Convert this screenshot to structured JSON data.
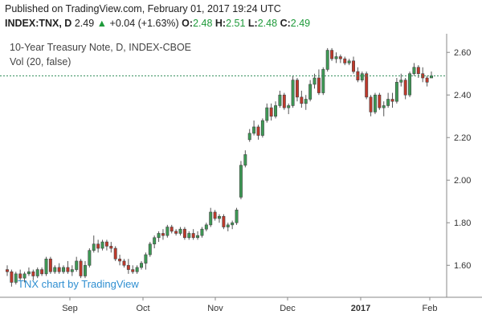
{
  "header": {
    "published": "Published on TradingView.com, February 01, 2017 19:24 UTC",
    "symbol": "INDEX:TNX, D",
    "last": "2.49",
    "change": "+0.04 (+1.63%)",
    "o_label": "O:",
    "o_value": "2.48",
    "h_label": "H:",
    "h_value": "2.51",
    "l_label": "L:",
    "l_value": "2.48",
    "c_label": "C:",
    "c_value": "2.49"
  },
  "overlay": {
    "title": "10-Year Treasury Note, D, INDEX-CBOE",
    "volume": "Vol (20, false)"
  },
  "watermark": "TNX chart by TradingView",
  "colors": {
    "up": "#3d9a55",
    "down": "#c0392b",
    "current_line": "#2e8b57",
    "axis": "#888888"
  },
  "chart_data": {
    "type": "candlestick",
    "y_ticks": [
      "2.60",
      "2.40",
      "2.20",
      "2.00",
      "1.80",
      "1.60"
    ],
    "ylim": [
      1.45,
      2.68
    ],
    "x_ticks": [
      "Sep",
      "Oct",
      "Nov",
      "Dec",
      "2017",
      "Feb"
    ],
    "current_price": 2.49,
    "candles": [
      {
        "o": 1.58,
        "h": 1.6,
        "l": 1.55,
        "c": 1.57
      },
      {
        "o": 1.57,
        "h": 1.58,
        "l": 1.5,
        "c": 1.52
      },
      {
        "o": 1.52,
        "h": 1.57,
        "l": 1.51,
        "c": 1.56
      },
      {
        "o": 1.56,
        "h": 1.58,
        "l": 1.53,
        "c": 1.54
      },
      {
        "o": 1.54,
        "h": 1.57,
        "l": 1.52,
        "c": 1.56
      },
      {
        "o": 1.56,
        "h": 1.59,
        "l": 1.55,
        "c": 1.57
      },
      {
        "o": 1.57,
        "h": 1.58,
        "l": 1.53,
        "c": 1.55
      },
      {
        "o": 1.55,
        "h": 1.59,
        "l": 1.54,
        "c": 1.58
      },
      {
        "o": 1.58,
        "h": 1.59,
        "l": 1.55,
        "c": 1.56
      },
      {
        "o": 1.56,
        "h": 1.64,
        "l": 1.55,
        "c": 1.63
      },
      {
        "o": 1.63,
        "h": 1.64,
        "l": 1.56,
        "c": 1.57
      },
      {
        "o": 1.57,
        "h": 1.6,
        "l": 1.56,
        "c": 1.59
      },
      {
        "o": 1.59,
        "h": 1.61,
        "l": 1.56,
        "c": 1.57
      },
      {
        "o": 1.57,
        "h": 1.6,
        "l": 1.56,
        "c": 1.59
      },
      {
        "o": 1.59,
        "h": 1.62,
        "l": 1.56,
        "c": 1.57
      },
      {
        "o": 1.57,
        "h": 1.6,
        "l": 1.55,
        "c": 1.58
      },
      {
        "o": 1.58,
        "h": 1.64,
        "l": 1.57,
        "c": 1.62
      },
      {
        "o": 1.62,
        "h": 1.63,
        "l": 1.54,
        "c": 1.55
      },
      {
        "o": 1.55,
        "h": 1.62,
        "l": 1.54,
        "c": 1.6
      },
      {
        "o": 1.6,
        "h": 1.68,
        "l": 1.59,
        "c": 1.67
      },
      {
        "o": 1.67,
        "h": 1.74,
        "l": 1.66,
        "c": 1.7
      },
      {
        "o": 1.7,
        "h": 1.72,
        "l": 1.66,
        "c": 1.68
      },
      {
        "o": 1.68,
        "h": 1.72,
        "l": 1.67,
        "c": 1.71
      },
      {
        "o": 1.71,
        "h": 1.72,
        "l": 1.67,
        "c": 1.69
      },
      {
        "o": 1.69,
        "h": 1.71,
        "l": 1.66,
        "c": 1.68
      },
      {
        "o": 1.68,
        "h": 1.69,
        "l": 1.62,
        "c": 1.63
      },
      {
        "o": 1.63,
        "h": 1.65,
        "l": 1.6,
        "c": 1.62
      },
      {
        "o": 1.62,
        "h": 1.63,
        "l": 1.59,
        "c": 1.6
      },
      {
        "o": 1.6,
        "h": 1.63,
        "l": 1.56,
        "c": 1.58
      },
      {
        "o": 1.58,
        "h": 1.6,
        "l": 1.56,
        "c": 1.57
      },
      {
        "o": 1.57,
        "h": 1.6,
        "l": 1.56,
        "c": 1.59
      },
      {
        "o": 1.59,
        "h": 1.62,
        "l": 1.58,
        "c": 1.61
      },
      {
        "o": 1.61,
        "h": 1.66,
        "l": 1.58,
        "c": 1.65
      },
      {
        "o": 1.65,
        "h": 1.71,
        "l": 1.64,
        "c": 1.7
      },
      {
        "o": 1.7,
        "h": 1.74,
        "l": 1.68,
        "c": 1.73
      },
      {
        "o": 1.73,
        "h": 1.76,
        "l": 1.71,
        "c": 1.75
      },
      {
        "o": 1.75,
        "h": 1.77,
        "l": 1.72,
        "c": 1.74
      },
      {
        "o": 1.74,
        "h": 1.79,
        "l": 1.73,
        "c": 1.78
      },
      {
        "o": 1.78,
        "h": 1.79,
        "l": 1.75,
        "c": 1.76
      },
      {
        "o": 1.76,
        "h": 1.77,
        "l": 1.74,
        "c": 1.75
      },
      {
        "o": 1.75,
        "h": 1.78,
        "l": 1.74,
        "c": 1.77
      },
      {
        "o": 1.77,
        "h": 1.78,
        "l": 1.72,
        "c": 1.73
      },
      {
        "o": 1.73,
        "h": 1.76,
        "l": 1.72,
        "c": 1.75
      },
      {
        "o": 1.75,
        "h": 1.77,
        "l": 1.72,
        "c": 1.73
      },
      {
        "o": 1.73,
        "h": 1.76,
        "l": 1.72,
        "c": 1.74
      },
      {
        "o": 1.74,
        "h": 1.78,
        "l": 1.73,
        "c": 1.77
      },
      {
        "o": 1.77,
        "h": 1.8,
        "l": 1.76,
        "c": 1.79
      },
      {
        "o": 1.79,
        "h": 1.87,
        "l": 1.78,
        "c": 1.85
      },
      {
        "o": 1.85,
        "h": 1.86,
        "l": 1.81,
        "c": 1.82
      },
      {
        "o": 1.82,
        "h": 1.84,
        "l": 1.8,
        "c": 1.83
      },
      {
        "o": 1.83,
        "h": 1.84,
        "l": 1.77,
        "c": 1.78
      },
      {
        "o": 1.78,
        "h": 1.8,
        "l": 1.76,
        "c": 1.79
      },
      {
        "o": 1.79,
        "h": 1.81,
        "l": 1.77,
        "c": 1.8
      },
      {
        "o": 1.8,
        "h": 1.87,
        "l": 1.79,
        "c": 1.86
      },
      {
        "o": 1.92,
        "h": 2.09,
        "l": 1.91,
        "c": 2.07
      },
      {
        "o": 2.07,
        "h": 2.14,
        "l": 2.06,
        "c": 2.12
      },
      {
        "o": 2.19,
        "h": 2.24,
        "l": 2.18,
        "c": 2.22
      },
      {
        "o": 2.22,
        "h": 2.28,
        "l": 2.21,
        "c": 2.25
      },
      {
        "o": 2.25,
        "h": 2.26,
        "l": 2.19,
        "c": 2.21
      },
      {
        "o": 2.21,
        "h": 2.29,
        "l": 2.2,
        "c": 2.28
      },
      {
        "o": 2.28,
        "h": 2.36,
        "l": 2.27,
        "c": 2.34
      },
      {
        "o": 2.34,
        "h": 2.36,
        "l": 2.28,
        "c": 2.3
      },
      {
        "o": 2.3,
        "h": 2.37,
        "l": 2.29,
        "c": 2.35
      },
      {
        "o": 2.35,
        "h": 2.42,
        "l": 2.34,
        "c": 2.4
      },
      {
        "o": 2.4,
        "h": 2.41,
        "l": 2.33,
        "c": 2.34
      },
      {
        "o": 2.34,
        "h": 2.36,
        "l": 2.31,
        "c": 2.35
      },
      {
        "o": 2.35,
        "h": 2.49,
        "l": 2.34,
        "c": 2.47
      },
      {
        "o": 2.47,
        "h": 2.48,
        "l": 2.37,
        "c": 2.39
      },
      {
        "o": 2.39,
        "h": 2.42,
        "l": 2.34,
        "c": 2.36
      },
      {
        "o": 2.36,
        "h": 2.4,
        "l": 2.33,
        "c": 2.38
      },
      {
        "o": 2.38,
        "h": 2.47,
        "l": 2.37,
        "c": 2.45
      },
      {
        "o": 2.45,
        "h": 2.5,
        "l": 2.43,
        "c": 2.48
      },
      {
        "o": 2.48,
        "h": 2.52,
        "l": 2.4,
        "c": 2.41
      },
      {
        "o": 2.41,
        "h": 2.53,
        "l": 2.4,
        "c": 2.52
      },
      {
        "o": 2.52,
        "h": 2.62,
        "l": 2.51,
        "c": 2.61
      },
      {
        "o": 2.61,
        "h": 2.62,
        "l": 2.56,
        "c": 2.57
      },
      {
        "o": 2.57,
        "h": 2.6,
        "l": 2.55,
        "c": 2.58
      },
      {
        "o": 2.58,
        "h": 2.59,
        "l": 2.55,
        "c": 2.57
      },
      {
        "o": 2.57,
        "h": 2.58,
        "l": 2.54,
        "c": 2.55
      },
      {
        "o": 2.55,
        "h": 2.57,
        "l": 2.54,
        "c": 2.56
      },
      {
        "o": 2.56,
        "h": 2.58,
        "l": 2.5,
        "c": 2.51
      },
      {
        "o": 2.51,
        "h": 2.53,
        "l": 2.46,
        "c": 2.47
      },
      {
        "o": 2.47,
        "h": 2.51,
        "l": 2.46,
        "c": 2.5
      },
      {
        "o": 2.5,
        "h": 2.51,
        "l": 2.38,
        "c": 2.39
      },
      {
        "o": 2.39,
        "h": 2.4,
        "l": 2.3,
        "c": 2.32
      },
      {
        "o": 2.32,
        "h": 2.41,
        "l": 2.31,
        "c": 2.4
      },
      {
        "o": 2.4,
        "h": 2.41,
        "l": 2.33,
        "c": 2.34
      },
      {
        "o": 2.34,
        "h": 2.37,
        "l": 2.3,
        "c": 2.35
      },
      {
        "o": 2.35,
        "h": 2.41,
        "l": 2.34,
        "c": 2.38
      },
      {
        "o": 2.38,
        "h": 2.41,
        "l": 2.34,
        "c": 2.37
      },
      {
        "o": 2.37,
        "h": 2.48,
        "l": 2.36,
        "c": 2.46
      },
      {
        "o": 2.46,
        "h": 2.5,
        "l": 2.44,
        "c": 2.47
      },
      {
        "o": 2.47,
        "h": 2.48,
        "l": 2.38,
        "c": 2.4
      },
      {
        "o": 2.4,
        "h": 2.51,
        "l": 2.39,
        "c": 2.5
      },
      {
        "o": 2.5,
        "h": 2.55,
        "l": 2.49,
        "c": 2.53
      },
      {
        "o": 2.53,
        "h": 2.54,
        "l": 2.48,
        "c": 2.5
      },
      {
        "o": 2.5,
        "h": 2.53,
        "l": 2.46,
        "c": 2.48
      },
      {
        "o": 2.48,
        "h": 2.49,
        "l": 2.44,
        "c": 2.46
      },
      {
        "o": 2.48,
        "h": 2.51,
        "l": 2.48,
        "c": 2.49
      }
    ]
  }
}
